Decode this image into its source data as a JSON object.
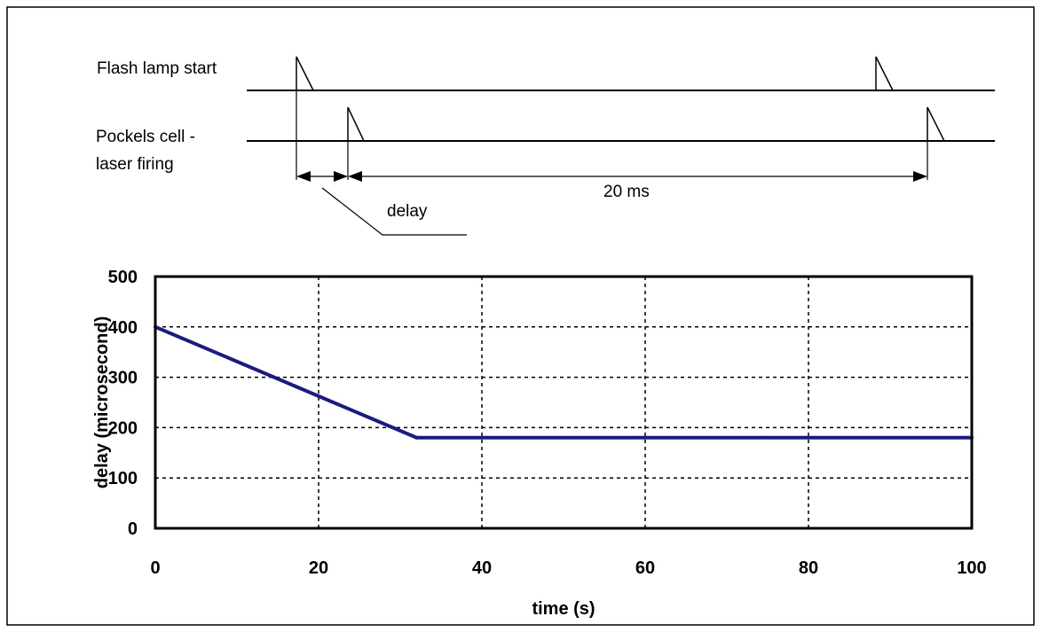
{
  "timing_diagram": {
    "flash_lamp_label": "Flash lamp start",
    "pockels_label_line1": "Pockels cell -",
    "pockels_label_line2": "laser firing",
    "interval_label": "20 ms",
    "delay_label": "delay"
  },
  "chart_data": {
    "type": "line",
    "title": "",
    "xlabel": "time (s)",
    "ylabel": "delay (microsecond)",
    "xlim": [
      0,
      100
    ],
    "ylim": [
      0,
      500
    ],
    "xticks": [
      0,
      20,
      40,
      60,
      80,
      100
    ],
    "yticks": [
      0,
      100,
      200,
      300,
      400,
      500
    ],
    "grid": true,
    "grid_style": "dotted",
    "series": [
      {
        "color": "#1a1a80",
        "x": [
          0,
          32,
          100
        ],
        "y": [
          400,
          180,
          180
        ]
      }
    ]
  }
}
